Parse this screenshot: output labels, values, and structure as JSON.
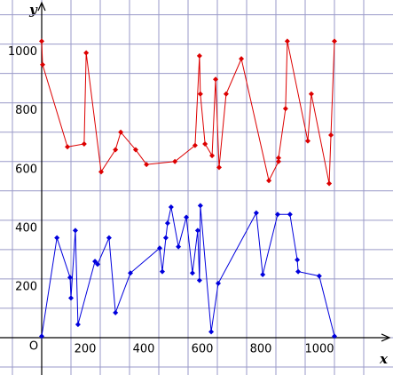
{
  "chart_data": {
    "type": "line",
    "x_label": "x",
    "y_label": "y",
    "origin_label": "O",
    "xlim": [
      -100,
      1200
    ],
    "ylim": [
      -100,
      1120
    ],
    "xticks": [
      200,
      400,
      600,
      800,
      1000
    ],
    "yticks": [
      200,
      400,
      600,
      800,
      1000
    ],
    "xgrid": [
      -100,
      0,
      100,
      200,
      300,
      400,
      500,
      600,
      700,
      800,
      900,
      1000,
      1100
    ],
    "ygrid": [
      -100,
      0,
      100,
      200,
      300,
      400,
      500,
      600,
      700,
      800,
      900,
      1000,
      1100
    ],
    "grid": true,
    "series": [
      {
        "color": "#dd0000",
        "x": [
          0,
          3,
          88,
          145,
          152,
          203,
          252,
          270,
          321,
          358,
          455,
          524,
          539,
          542,
          558,
          582,
          594,
          606,
          630,
          682,
          776,
          809,
          809,
          833,
          839,
          909,
          921,
          982,
          988,
          1000
        ],
        "values": [
          1010,
          930,
          650,
          660,
          970,
          565,
          640,
          700,
          640,
          590,
          600,
          655,
          960,
          830,
          660,
          620,
          880,
          580,
          830,
          950,
          535,
          600,
          612,
          780,
          1010,
          670,
          830,
          525,
          690,
          1010
        ]
      },
      {
        "color": "#0000dd",
        "x": [
          0,
          52,
          97,
          100,
          115,
          124,
          182,
          191,
          230,
          252,
          303,
          403,
          412,
          424,
          430,
          442,
          467,
          494,
          515,
          533,
          539,
          542,
          579,
          603,
          733,
          755,
          806,
          848,
          873,
          876,
          948,
          1000
        ],
        "values": [
          5,
          340,
          205,
          135,
          365,
          45,
          260,
          250,
          340,
          85,
          220,
          305,
          225,
          340,
          390,
          445,
          310,
          410,
          220,
          365,
          195,
          450,
          20,
          185,
          425,
          215,
          420,
          420,
          265,
          225,
          210,
          5
        ]
      }
    ]
  }
}
